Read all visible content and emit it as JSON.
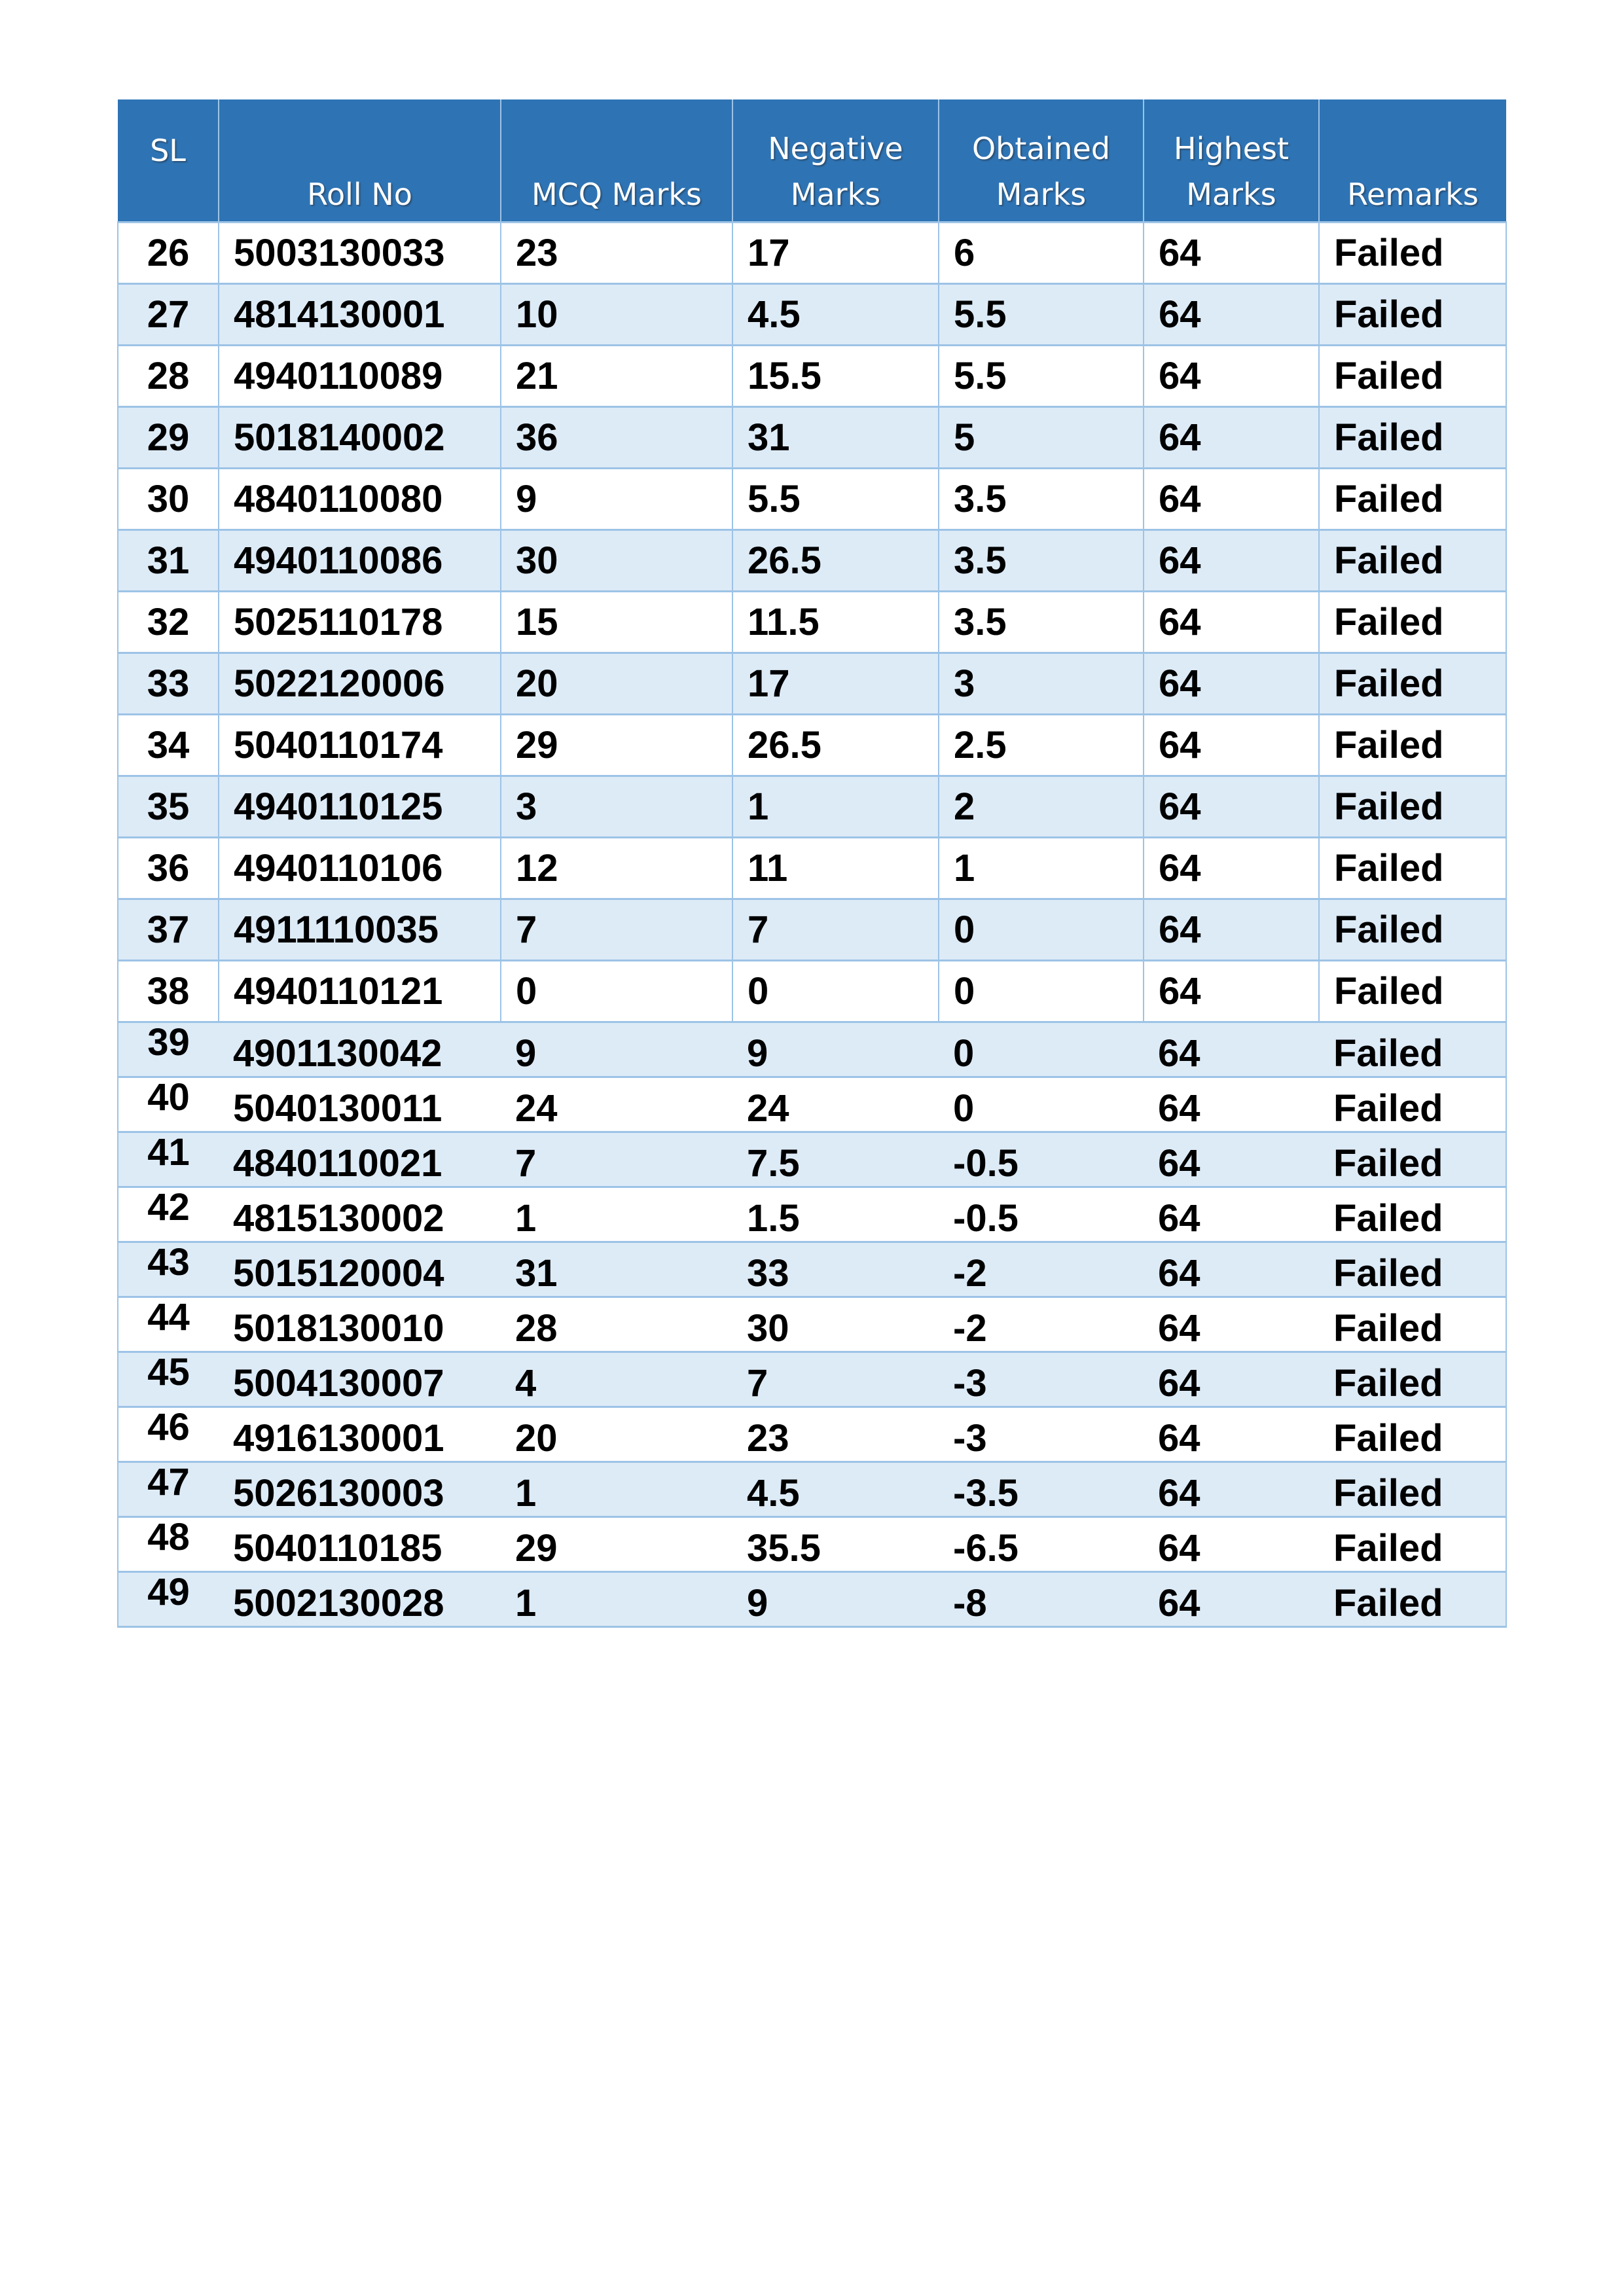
{
  "table": {
    "header_color": "#2e74b5",
    "alt_row_color": "#ddebf7",
    "columns": [
      "SL",
      "Roll No",
      "MCQ Marks",
      "Negative Marks",
      "Obtained Marks",
      "Highest Marks",
      "Remarks"
    ],
    "rows": [
      [
        "26",
        "5003130033",
        "23",
        "17",
        "6",
        "64",
        "Failed"
      ],
      [
        "27",
        "4814130001",
        "10",
        "4.5",
        "5.5",
        "64",
        "Failed"
      ],
      [
        "28",
        "4940110089",
        "21",
        "15.5",
        "5.5",
        "64",
        "Failed"
      ],
      [
        "29",
        "5018140002",
        "36",
        "31",
        "5",
        "64",
        "Failed"
      ],
      [
        "30",
        "4840110080",
        "9",
        "5.5",
        "3.5",
        "64",
        "Failed"
      ],
      [
        "31",
        "4940110086",
        "30",
        "26.5",
        "3.5",
        "64",
        "Failed"
      ],
      [
        "32",
        "5025110178",
        "15",
        "11.5",
        "3.5",
        "64",
        "Failed"
      ],
      [
        "33",
        "5022120006",
        "20",
        "17",
        "3",
        "64",
        "Failed"
      ],
      [
        "34",
        "5040110174",
        "29",
        "26.5",
        "2.5",
        "64",
        "Failed"
      ],
      [
        "35",
        "4940110125",
        "3",
        "1",
        "2",
        "64",
        "Failed"
      ],
      [
        "36",
        "4940110106",
        "12",
        "11",
        "1",
        "64",
        "Failed"
      ],
      [
        "37",
        "4911110035",
        "7",
        "7",
        "0",
        "64",
        "Failed"
      ],
      [
        "38",
        "4940110121",
        "0",
        "0",
        "0",
        "64",
        "Failed"
      ],
      [
        "39",
        "4901130042",
        "9",
        "9",
        "0",
        "64",
        "Failed"
      ],
      [
        "40",
        "5040130011",
        "24",
        "24",
        "0",
        "64",
        "Failed"
      ],
      [
        "41",
        "4840110021",
        "7",
        "7.5",
        "-0.5",
        "64",
        "Failed"
      ],
      [
        "42",
        "4815130002",
        "1",
        "1.5",
        "-0.5",
        "64",
        "Failed"
      ],
      [
        "43",
        "5015120004",
        "31",
        "33",
        "-2",
        "64",
        "Failed"
      ],
      [
        "44",
        "5018130010",
        "28",
        "30",
        "-2",
        "64",
        "Failed"
      ],
      [
        "45",
        "5004130007",
        "4",
        "7",
        "-3",
        "64",
        "Failed"
      ],
      [
        "46",
        "4916130001",
        "20",
        "23",
        "-3",
        "64",
        "Failed"
      ],
      [
        "47",
        "5026130003",
        "1",
        "4.5",
        "-3.5",
        "64",
        "Failed"
      ],
      [
        "48",
        "5040110185",
        "29",
        "35.5",
        "-6.5",
        "64",
        "Failed"
      ],
      [
        "49",
        "5002130028",
        "1",
        "9",
        "-8",
        "64",
        "Failed"
      ]
    ]
  }
}
